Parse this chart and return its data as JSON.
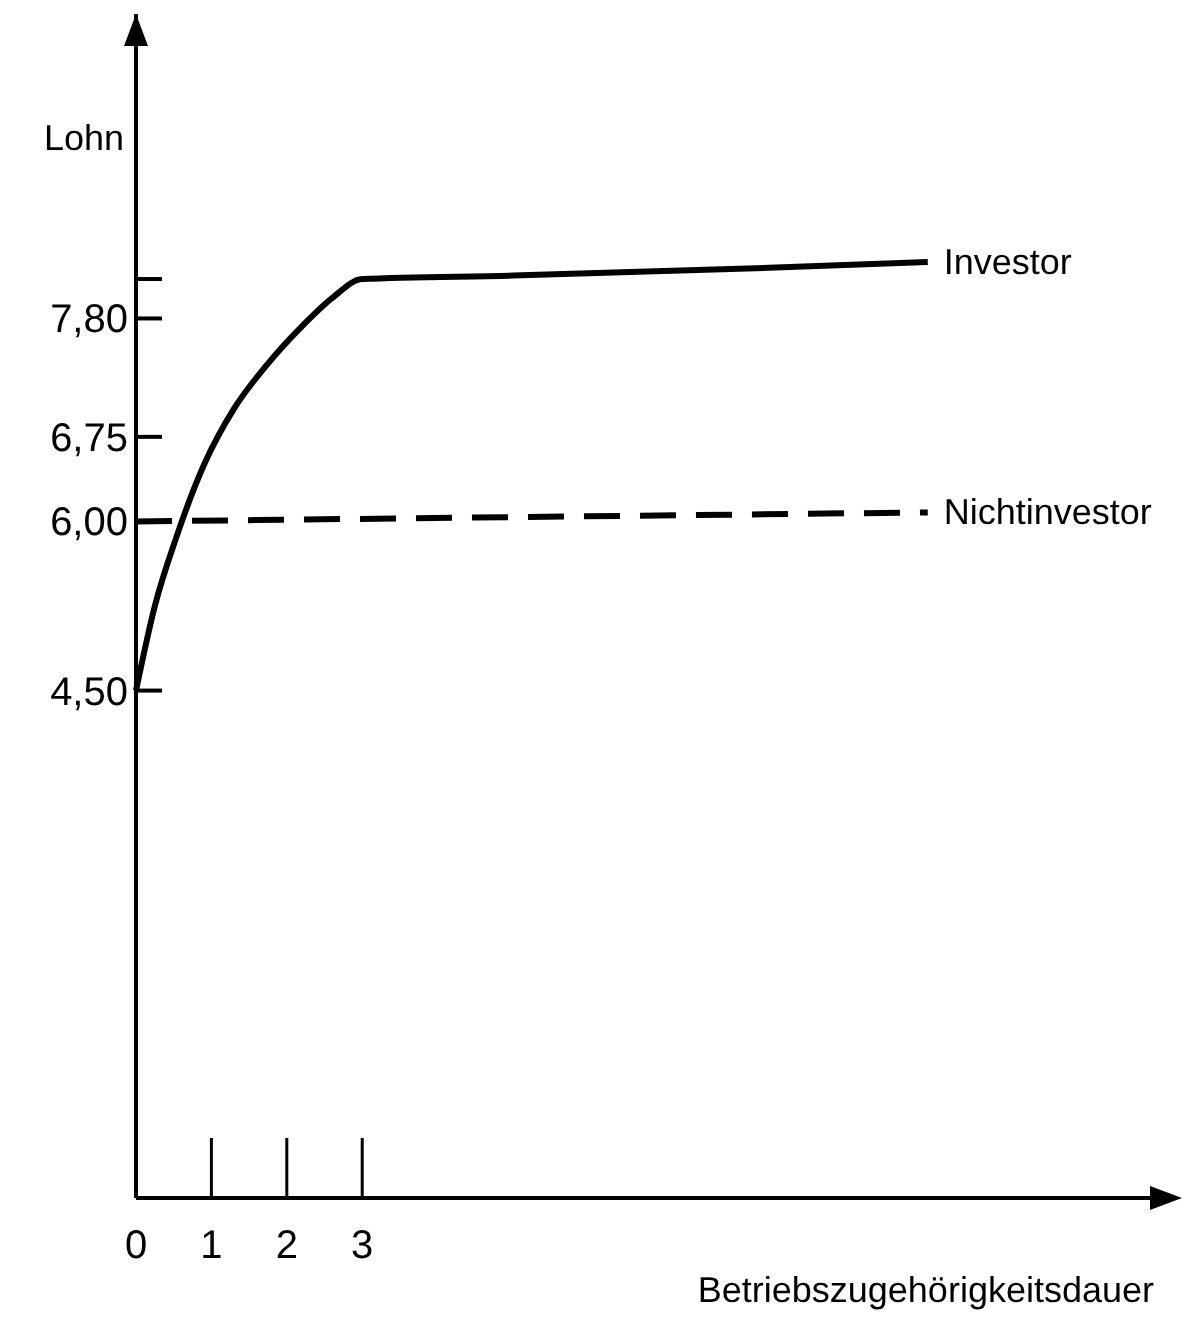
{
  "chart_data": {
    "type": "line",
    "xlabel": "Betriebszugehörigkeitsdauer",
    "ylabel": "Lohn",
    "xlim": [
      0,
      13.5
    ],
    "xticks": [
      0,
      1,
      2,
      3
    ],
    "ylim": [
      0,
      10.5
    ],
    "yticks": [
      {
        "value": 4.5,
        "label": "4,50"
      },
      {
        "value": 6,
        "label": "6,00"
      },
      {
        "value": 6.75,
        "label": "6,75"
      },
      {
        "value": 7.8,
        "label": "7,80"
      },
      {
        "value": 8.15,
        "label": null
      }
    ],
    "grid": false,
    "marker": "none",
    "series": [
      {
        "name": "Investor",
        "color": "#000000",
        "line_style": "solid",
        "x": [
          0,
          0.25,
          0.53,
          0.9,
          1.3,
          1.75,
          2.2,
          2.6,
          3,
          5,
          8,
          10.5
        ],
        "values": [
          4.5,
          5.25,
          5.85,
          6.5,
          7.0,
          7.4,
          7.73,
          7.98,
          8.15,
          8.18,
          8.24,
          8.3
        ]
      },
      {
        "name": "Nichtinvestor",
        "color": "#000000",
        "line_style": "dashed",
        "x": [
          0,
          10.5
        ],
        "values": [
          6.0,
          6.08
        ]
      }
    ]
  }
}
